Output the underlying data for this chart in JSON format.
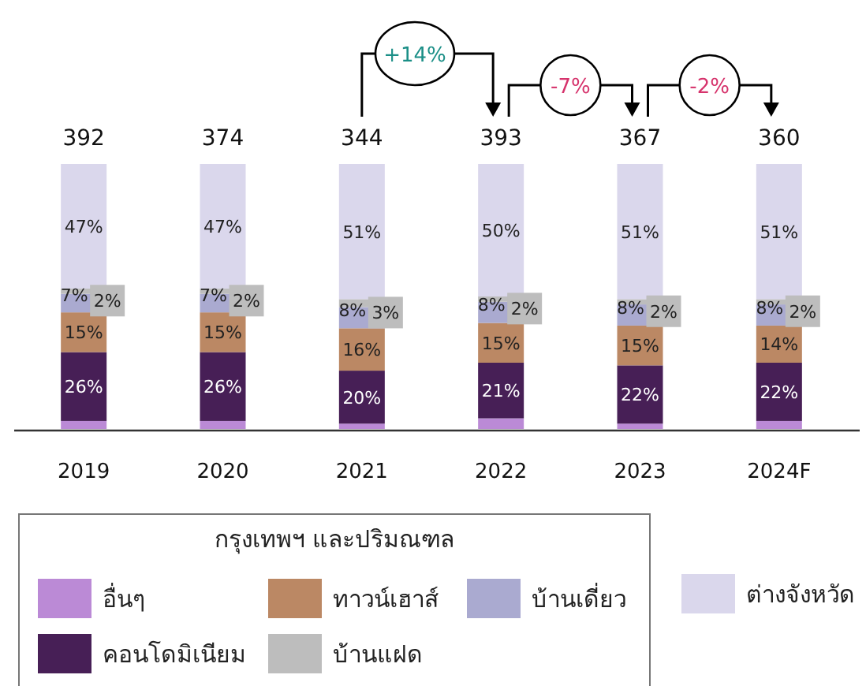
{
  "chart_data": {
    "type": "bar",
    "stacked": true,
    "legend": "bottom",
    "legend_title": "กรุงเทพฯ และปริมณฑล",
    "categories": [
      "2019",
      "2020",
      "2021",
      "2022",
      "2023",
      "2024F"
    ],
    "series": [
      {
        "name": "อื่นๆ",
        "color": "#bb8ad6",
        "values": [
          3,
          3,
          2,
          4,
          2,
          3
        ]
      },
      {
        "name": "คอนโดมิเนียม",
        "color": "#471f56",
        "values": [
          26,
          26,
          20,
          21,
          22,
          22
        ],
        "value_labels": [
          "26%",
          "26%",
          "20%",
          "21%",
          "22%",
          "22%"
        ]
      },
      {
        "name": "ทาวน์เฮาส์",
        "color": "#bb8864",
        "values": [
          15,
          15,
          16,
          15,
          15,
          14
        ],
        "value_labels": [
          "15%",
          "15%",
          "16%",
          "15%",
          "15%",
          "14%"
        ]
      },
      {
        "name": "บ้านเดี่ยว",
        "color": "#aaaad0",
        "values": [
          7,
          7,
          8,
          8,
          8,
          8
        ],
        "value_labels": [
          "7%",
          "7%",
          "8%",
          "8%",
          "8%",
          "8%"
        ]
      },
      {
        "name": "บ้านแฝด",
        "color": "#bdbdbd",
        "values": [
          2,
          2,
          3,
          2,
          2,
          2
        ],
        "value_labels": [
          "2%",
          "2%",
          "3%",
          "2%",
          "2%",
          "2%"
        ]
      },
      {
        "name": "ต่างจังหวัด",
        "color": "#dad7ec",
        "values": [
          47,
          47,
          51,
          50,
          51,
          51
        ],
        "value_labels": [
          "47%",
          "47%",
          "51%",
          "50%",
          "51%",
          "51%"
        ]
      }
    ],
    "annotations": [
      "392",
      "374",
      "344",
      "393",
      "367",
      "360",
      "+14%",
      "-7%",
      "-2%"
    ]
  }
}
